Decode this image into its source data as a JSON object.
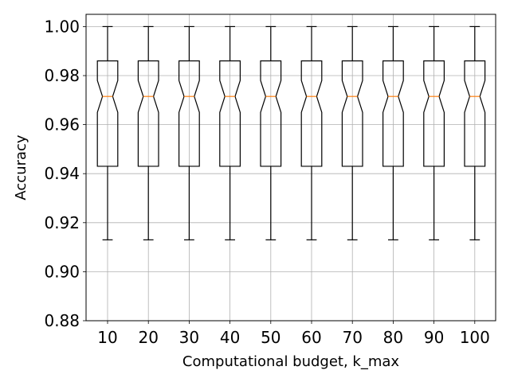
{
  "chart_data": {
    "type": "boxplot",
    "notched": true,
    "xlabel": "Computational budget, k_max",
    "ylabel": "Accuracy",
    "categories": [
      "10",
      "20",
      "30",
      "40",
      "50",
      "60",
      "70",
      "80",
      "90",
      "100"
    ],
    "boxes": [
      {
        "category": "10",
        "whislo": 0.913,
        "q1": 0.943,
        "med": 0.9715,
        "q3": 0.986,
        "whishi": 1.0,
        "notch_lo": 0.965,
        "notch_hi": 0.978
      },
      {
        "category": "20",
        "whislo": 0.913,
        "q1": 0.943,
        "med": 0.9715,
        "q3": 0.986,
        "whishi": 1.0,
        "notch_lo": 0.965,
        "notch_hi": 0.978
      },
      {
        "category": "30",
        "whislo": 0.913,
        "q1": 0.943,
        "med": 0.9715,
        "q3": 0.986,
        "whishi": 1.0,
        "notch_lo": 0.965,
        "notch_hi": 0.978
      },
      {
        "category": "40",
        "whislo": 0.913,
        "q1": 0.943,
        "med": 0.9715,
        "q3": 0.986,
        "whishi": 1.0,
        "notch_lo": 0.965,
        "notch_hi": 0.978
      },
      {
        "category": "50",
        "whislo": 0.913,
        "q1": 0.943,
        "med": 0.9715,
        "q3": 0.986,
        "whishi": 1.0,
        "notch_lo": 0.965,
        "notch_hi": 0.978
      },
      {
        "category": "60",
        "whislo": 0.913,
        "q1": 0.943,
        "med": 0.9715,
        "q3": 0.986,
        "whishi": 1.0,
        "notch_lo": 0.965,
        "notch_hi": 0.978
      },
      {
        "category": "70",
        "whislo": 0.913,
        "q1": 0.943,
        "med": 0.9715,
        "q3": 0.986,
        "whishi": 1.0,
        "notch_lo": 0.965,
        "notch_hi": 0.978
      },
      {
        "category": "80",
        "whislo": 0.913,
        "q1": 0.943,
        "med": 0.9715,
        "q3": 0.986,
        "whishi": 1.0,
        "notch_lo": 0.965,
        "notch_hi": 0.978
      },
      {
        "category": "90",
        "whislo": 0.913,
        "q1": 0.943,
        "med": 0.9715,
        "q3": 0.986,
        "whishi": 1.0,
        "notch_lo": 0.965,
        "notch_hi": 0.978
      },
      {
        "category": "100",
        "whislo": 0.913,
        "q1": 0.943,
        "med": 0.9715,
        "q3": 0.986,
        "whishi": 1.0,
        "notch_lo": 0.965,
        "notch_hi": 0.978
      }
    ],
    "ylim": [
      0.88,
      1.005
    ],
    "yticks": [
      0.88,
      0.9,
      0.92,
      0.94,
      0.96,
      0.98,
      1.0
    ],
    "ytick_labels": [
      "0.88",
      "0.90",
      "0.92",
      "0.94",
      "0.96",
      "0.98",
      "1.00"
    ],
    "grid": true,
    "colors": {
      "box": "#000000",
      "median": "#ff7f0e",
      "grid": "#b0b0b0",
      "axes": "#000000",
      "background": "#ffffff"
    }
  }
}
